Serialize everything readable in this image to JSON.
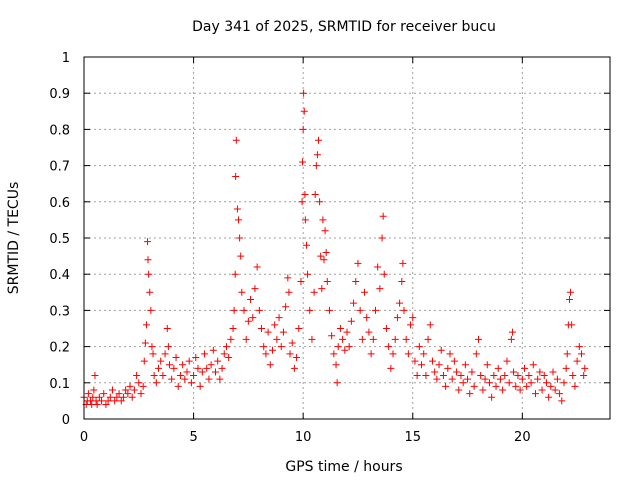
{
  "chart_data": {
    "type": "scatter",
    "title": "Day 341 of 2025, SRMTID for receiver bucu",
    "xlabel": "GPS time / hours",
    "ylabel": "SRMTID / TECUs",
    "xlim": [
      0,
      24
    ],
    "ylim": [
      0,
      1
    ],
    "xticks": [
      0,
      5,
      10,
      15,
      20
    ],
    "xtick_labels": [
      "0",
      "5",
      "10",
      "15",
      "20"
    ],
    "yticks": [
      0,
      0.1,
      0.2,
      0.3,
      0.4,
      0.5,
      0.6,
      0.7,
      0.8,
      0.9,
      1
    ],
    "ytick_labels": [
      "0",
      "0.1",
      "0.2",
      "0.3",
      "0.4",
      "0.5",
      "0.6",
      "0.7",
      "0.8",
      "0.9",
      "1"
    ],
    "grid": true,
    "marker": "+",
    "color": "#ff0000",
    "series": [
      {
        "name": "SRMTID",
        "points": [
          [
            0.0,
            0.06
          ],
          [
            0.1,
            0.04
          ],
          [
            0.15,
            0.05
          ],
          [
            0.2,
            0.07
          ],
          [
            0.3,
            0.05
          ],
          [
            0.35,
            0.04
          ],
          [
            0.4,
            0.06
          ],
          [
            0.45,
            0.08
          ],
          [
            0.5,
            0.12
          ],
          [
            0.55,
            0.05
          ],
          [
            0.6,
            0.04
          ],
          [
            0.7,
            0.06
          ],
          [
            0.8,
            0.05
          ],
          [
            0.9,
            0.07
          ],
          [
            1.0,
            0.04
          ],
          [
            1.1,
            0.05
          ],
          [
            1.2,
            0.06
          ],
          [
            1.3,
            0.08
          ],
          [
            1.4,
            0.05
          ],
          [
            1.5,
            0.06
          ],
          [
            1.6,
            0.07
          ],
          [
            1.7,
            0.05
          ],
          [
            1.8,
            0.06
          ],
          [
            1.9,
            0.08
          ],
          [
            2.0,
            0.07
          ],
          [
            2.1,
            0.09
          ],
          [
            2.2,
            0.06
          ],
          [
            2.3,
            0.08
          ],
          [
            2.4,
            0.12
          ],
          [
            2.5,
            0.1
          ],
          [
            2.6,
            0.07
          ],
          [
            2.7,
            0.09
          ],
          [
            2.75,
            0.16
          ],
          [
            2.8,
            0.21
          ],
          [
            2.85,
            0.26
          ],
          [
            2.9,
            0.49
          ],
          [
            2.92,
            0.44
          ],
          [
            2.95,
            0.4
          ],
          [
            3.0,
            0.35
          ],
          [
            3.05,
            0.3
          ],
          [
            3.1,
            0.2
          ],
          [
            3.15,
            0.18
          ],
          [
            3.2,
            0.12
          ],
          [
            3.3,
            0.1
          ],
          [
            3.4,
            0.14
          ],
          [
            3.5,
            0.16
          ],
          [
            3.6,
            0.12
          ],
          [
            3.7,
            0.18
          ],
          [
            3.8,
            0.25
          ],
          [
            3.85,
            0.2
          ],
          [
            3.9,
            0.15
          ],
          [
            4.0,
            0.11
          ],
          [
            4.1,
            0.14
          ],
          [
            4.2,
            0.17
          ],
          [
            4.3,
            0.09
          ],
          [
            4.4,
            0.12
          ],
          [
            4.5,
            0.15
          ],
          [
            4.6,
            0.11
          ],
          [
            4.7,
            0.13
          ],
          [
            4.8,
            0.16
          ],
          [
            4.9,
            0.1
          ],
          [
            5.0,
            0.12
          ],
          [
            5.1,
            0.17
          ],
          [
            5.2,
            0.14
          ],
          [
            5.3,
            0.09
          ],
          [
            5.4,
            0.13
          ],
          [
            5.5,
            0.18
          ],
          [
            5.6,
            0.14
          ],
          [
            5.7,
            0.11
          ],
          [
            5.8,
            0.15
          ],
          [
            5.9,
            0.19
          ],
          [
            6.0,
            0.13
          ],
          [
            6.1,
            0.16
          ],
          [
            6.2,
            0.11
          ],
          [
            6.3,
            0.14
          ],
          [
            6.4,
            0.18
          ],
          [
            6.5,
            0.2
          ],
          [
            6.6,
            0.17
          ],
          [
            6.7,
            0.22
          ],
          [
            6.8,
            0.25
          ],
          [
            6.85,
            0.3
          ],
          [
            6.9,
            0.4
          ],
          [
            6.92,
            0.67
          ],
          [
            6.95,
            0.77
          ],
          [
            7.0,
            0.58
          ],
          [
            7.05,
            0.55
          ],
          [
            7.1,
            0.5
          ],
          [
            7.15,
            0.45
          ],
          [
            7.2,
            0.35
          ],
          [
            7.3,
            0.3
          ],
          [
            7.4,
            0.22
          ],
          [
            7.5,
            0.27
          ],
          [
            7.6,
            0.33
          ],
          [
            7.7,
            0.28
          ],
          [
            7.8,
            0.36
          ],
          [
            7.9,
            0.42
          ],
          [
            8.0,
            0.3
          ],
          [
            8.1,
            0.25
          ],
          [
            8.2,
            0.2
          ],
          [
            8.3,
            0.18
          ],
          [
            8.4,
            0.24
          ],
          [
            8.5,
            0.15
          ],
          [
            8.6,
            0.19
          ],
          [
            8.7,
            0.26
          ],
          [
            8.8,
            0.22
          ],
          [
            8.9,
            0.28
          ],
          [
            9.0,
            0.2
          ],
          [
            9.1,
            0.24
          ],
          [
            9.2,
            0.31
          ],
          [
            9.3,
            0.39
          ],
          [
            9.35,
            0.35
          ],
          [
            9.4,
            0.18
          ],
          [
            9.5,
            0.21
          ],
          [
            9.6,
            0.14
          ],
          [
            9.7,
            0.17
          ],
          [
            9.8,
            0.25
          ],
          [
            9.9,
            0.38
          ],
          [
            9.95,
            0.6
          ],
          [
            9.97,
            0.71
          ],
          [
            10.0,
            0.8
          ],
          [
            10.02,
            0.9
          ],
          [
            10.05,
            0.85
          ],
          [
            10.08,
            0.62
          ],
          [
            10.1,
            0.55
          ],
          [
            10.15,
            0.48
          ],
          [
            10.2,
            0.4
          ],
          [
            10.3,
            0.3
          ],
          [
            10.4,
            0.22
          ],
          [
            10.5,
            0.35
          ],
          [
            10.55,
            0.62
          ],
          [
            10.6,
            0.7
          ],
          [
            10.65,
            0.73
          ],
          [
            10.7,
            0.77
          ],
          [
            10.75,
            0.6
          ],
          [
            10.8,
            0.45
          ],
          [
            10.85,
            0.36
          ],
          [
            10.9,
            0.55
          ],
          [
            10.95,
            0.44
          ],
          [
            11.0,
            0.52
          ],
          [
            11.05,
            0.46
          ],
          [
            11.1,
            0.38
          ],
          [
            11.2,
            0.3
          ],
          [
            11.3,
            0.23
          ],
          [
            11.4,
            0.18
          ],
          [
            11.5,
            0.15
          ],
          [
            11.55,
            0.1
          ],
          [
            11.6,
            0.2
          ],
          [
            11.7,
            0.25
          ],
          [
            11.8,
            0.22
          ],
          [
            11.9,
            0.19
          ],
          [
            12.0,
            0.24
          ],
          [
            12.1,
            0.2
          ],
          [
            12.2,
            0.27
          ],
          [
            12.3,
            0.32
          ],
          [
            12.4,
            0.38
          ],
          [
            12.5,
            0.43
          ],
          [
            12.6,
            0.3
          ],
          [
            12.7,
            0.22
          ],
          [
            12.8,
            0.35
          ],
          [
            12.9,
            0.28
          ],
          [
            13.0,
            0.24
          ],
          [
            13.1,
            0.18
          ],
          [
            13.2,
            0.22
          ],
          [
            13.3,
            0.3
          ],
          [
            13.4,
            0.42
          ],
          [
            13.5,
            0.36
          ],
          [
            13.6,
            0.5
          ],
          [
            13.65,
            0.56
          ],
          [
            13.7,
            0.4
          ],
          [
            13.8,
            0.25
          ],
          [
            13.9,
            0.2
          ],
          [
            14.0,
            0.14
          ],
          [
            14.1,
            0.18
          ],
          [
            14.2,
            0.22
          ],
          [
            14.3,
            0.28
          ],
          [
            14.4,
            0.32
          ],
          [
            14.5,
            0.38
          ],
          [
            14.55,
            0.43
          ],
          [
            14.6,
            0.3
          ],
          [
            14.7,
            0.22
          ],
          [
            14.8,
            0.18
          ],
          [
            14.9,
            0.26
          ],
          [
            15.0,
            0.28
          ],
          [
            15.1,
            0.16
          ],
          [
            15.2,
            0.12
          ],
          [
            15.3,
            0.2
          ],
          [
            15.4,
            0.15
          ],
          [
            15.5,
            0.18
          ],
          [
            15.6,
            0.12
          ],
          [
            15.7,
            0.22
          ],
          [
            15.8,
            0.26
          ],
          [
            15.9,
            0.16
          ],
          [
            16.0,
            0.13
          ],
          [
            16.1,
            0.11
          ],
          [
            16.2,
            0.15
          ],
          [
            16.3,
            0.19
          ],
          [
            16.4,
            0.12
          ],
          [
            16.5,
            0.09
          ],
          [
            16.6,
            0.14
          ],
          [
            16.7,
            0.18
          ],
          [
            16.8,
            0.11
          ],
          [
            16.9,
            0.16
          ],
          [
            17.0,
            0.13
          ],
          [
            17.1,
            0.08
          ],
          [
            17.2,
            0.12
          ],
          [
            17.3,
            0.1
          ],
          [
            17.4,
            0.15
          ],
          [
            17.5,
            0.11
          ],
          [
            17.6,
            0.07
          ],
          [
            17.7,
            0.13
          ],
          [
            17.8,
            0.09
          ],
          [
            17.9,
            0.18
          ],
          [
            18.0,
            0.22
          ],
          [
            18.1,
            0.12
          ],
          [
            18.2,
            0.08
          ],
          [
            18.3,
            0.11
          ],
          [
            18.4,
            0.15
          ],
          [
            18.5,
            0.1
          ],
          [
            18.6,
            0.06
          ],
          [
            18.7,
            0.12
          ],
          [
            18.8,
            0.09
          ],
          [
            18.9,
            0.14
          ],
          [
            19.0,
            0.11
          ],
          [
            19.1,
            0.08
          ],
          [
            19.2,
            0.12
          ],
          [
            19.3,
            0.16
          ],
          [
            19.4,
            0.1
          ],
          [
            19.5,
            0.22
          ],
          [
            19.55,
            0.24
          ],
          [
            19.6,
            0.13
          ],
          [
            19.7,
            0.09
          ],
          [
            19.8,
            0.12
          ],
          [
            19.9,
            0.08
          ],
          [
            20.0,
            0.11
          ],
          [
            20.1,
            0.14
          ],
          [
            20.2,
            0.09
          ],
          [
            20.3,
            0.12
          ],
          [
            20.4,
            0.1
          ],
          [
            20.5,
            0.15
          ],
          [
            20.6,
            0.07
          ],
          [
            20.7,
            0.11
          ],
          [
            20.8,
            0.13
          ],
          [
            20.9,
            0.08
          ],
          [
            21.0,
            0.12
          ],
          [
            21.1,
            0.1
          ],
          [
            21.2,
            0.06
          ],
          [
            21.3,
            0.09
          ],
          [
            21.4,
            0.13
          ],
          [
            21.5,
            0.08
          ],
          [
            21.6,
            0.11
          ],
          [
            21.7,
            0.07
          ],
          [
            21.8,
            0.05
          ],
          [
            21.9,
            0.1
          ],
          [
            22.0,
            0.14
          ],
          [
            22.05,
            0.18
          ],
          [
            22.1,
            0.26
          ],
          [
            22.15,
            0.33
          ],
          [
            22.2,
            0.35
          ],
          [
            22.25,
            0.26
          ],
          [
            22.3,
            0.12
          ],
          [
            22.4,
            0.09
          ],
          [
            22.5,
            0.16
          ],
          [
            22.6,
            0.2
          ],
          [
            22.7,
            0.18
          ],
          [
            22.8,
            0.12
          ],
          [
            22.85,
            0.14
          ]
        ]
      }
    ]
  }
}
